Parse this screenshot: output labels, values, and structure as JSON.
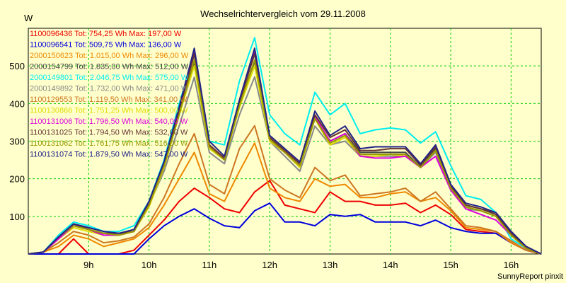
{
  "chart_data": {
    "type": "line",
    "title": "Wechselrichtervergleich vom 29.11.2008",
    "ylabel": "W",
    "footer": "SunnyReport pinxit",
    "ylim": [
      0,
      600
    ],
    "yticks": [
      100,
      200,
      300,
      400,
      500
    ],
    "xticks": [
      "9h",
      "10h",
      "11h",
      "12h",
      "13h",
      "14h",
      "15h",
      "16h"
    ],
    "grid": true,
    "x": [
      "8:00",
      "8:15",
      "8:30",
      "8:45",
      "9:00",
      "9:15",
      "9:30",
      "9:45",
      "10:00",
      "10:15",
      "10:30",
      "10:45",
      "11:00",
      "11:15",
      "11:30",
      "11:45",
      "12:00",
      "12:15",
      "12:30",
      "12:45",
      "13:00",
      "13:15",
      "13:30",
      "13:45",
      "14:00",
      "14:15",
      "14:30",
      "14:45",
      "15:00",
      "15:15",
      "15:30",
      "15:45",
      "16:00",
      "16:15",
      "16:30"
    ],
    "series": [
      {
        "name": "1100096436 Tot: 754,25 Wh Max: 197,00 W",
        "color": "#ee0000",
        "values": [
          0,
          0,
          0,
          40,
          0,
          0,
          0,
          10,
          50,
          90,
          140,
          175,
          150,
          120,
          110,
          165,
          195,
          130,
          120,
          110,
          165,
          140,
          140,
          130,
          130,
          135,
          110,
          130,
          105,
          65,
          60,
          55,
          30,
          10,
          0
        ]
      },
      {
        "name": "1100096541 Tot: 509,75 Wh Max: 136,00 W",
        "color": "#0000dd",
        "values": [
          0,
          0,
          0,
          0,
          0,
          0,
          0,
          0,
          40,
          75,
          100,
          120,
          95,
          75,
          70,
          115,
          135,
          85,
          85,
          75,
          105,
          100,
          105,
          85,
          85,
          85,
          75,
          90,
          70,
          60,
          55,
          55,
          30,
          10,
          0
        ]
      },
      {
        "name": "2000150623 Tot: 1.015,00 Wh Max: 296,00 W",
        "color": "#ee8800",
        "values": [
          0,
          5,
          20,
          50,
          40,
          20,
          30,
          40,
          70,
          130,
          200,
          270,
          160,
          140,
          220,
          295,
          175,
          150,
          140,
          200,
          180,
          185,
          150,
          150,
          160,
          165,
          140,
          150,
          115,
          70,
          65,
          60,
          30,
          10,
          0
        ]
      },
      {
        "name": "2000154799 Tot: 1.835,00 Wh Max: 512,00 W",
        "color": "#444444",
        "values": [
          0,
          5,
          40,
          80,
          70,
          60,
          55,
          60,
          140,
          240,
          380,
          510,
          290,
          250,
          400,
          512,
          310,
          270,
          230,
          360,
          300,
          320,
          270,
          270,
          270,
          270,
          230,
          280,
          180,
          130,
          120,
          110,
          60,
          20,
          0
        ]
      },
      {
        "name": "2000149801 Tot: 2.046,75 Wh Max: 575,00 W",
        "color": "#00eeee",
        "values": [
          0,
          5,
          50,
          85,
          75,
          60,
          60,
          75,
          140,
          250,
          400,
          530,
          300,
          290,
          460,
          575,
          370,
          320,
          290,
          430,
          370,
          400,
          320,
          330,
          335,
          330,
          295,
          325,
          235,
          155,
          145,
          110,
          40,
          15,
          0
        ]
      },
      {
        "name": "2000149892 Tot: 1.732,00 Wh Max: 471,00 W",
        "color": "#888888",
        "values": [
          0,
          5,
          45,
          75,
          65,
          55,
          50,
          60,
          130,
          220,
          340,
          470,
          270,
          240,
          370,
          471,
          300,
          260,
          220,
          340,
          290,
          300,
          260,
          260,
          260,
          260,
          230,
          270,
          170,
          120,
          115,
          100,
          50,
          15,
          0
        ]
      },
      {
        "name": "1100129553 Tot: 1.119,50 Wh Max: 341,00 W",
        "color": "#cc7722",
        "values": [
          0,
          5,
          30,
          60,
          50,
          30,
          35,
          45,
          80,
          150,
          240,
          320,
          185,
          160,
          280,
          341,
          200,
          170,
          150,
          230,
          195,
          210,
          155,
          160,
          165,
          175,
          140,
          165,
          120,
          75,
          70,
          60,
          35,
          10,
          0
        ]
      },
      {
        "name": "1100130866 Tot: 1.751,25 Wh Max: 500,00 W",
        "color": "#dddd00",
        "values": [
          0,
          5,
          40,
          70,
          60,
          50,
          50,
          60,
          125,
          230,
          370,
          500,
          280,
          250,
          390,
          500,
          300,
          270,
          230,
          360,
          290,
          310,
          260,
          260,
          265,
          260,
          230,
          275,
          175,
          125,
          115,
          100,
          55,
          15,
          0
        ]
      },
      {
        "name": "1100131006 Tot: 1.796,50 Wh Max: 540,00 W",
        "color": "#dd00dd",
        "values": [
          0,
          5,
          40,
          75,
          65,
          50,
          50,
          60,
          130,
          235,
          375,
          540,
          285,
          255,
          400,
          540,
          305,
          270,
          235,
          365,
          300,
          320,
          260,
          255,
          255,
          260,
          230,
          260,
          170,
          120,
          105,
          90,
          50,
          15,
          0
        ]
      },
      {
        "name": "1100131025 Tot: 1.794,50 Wh Max: 532,00 W",
        "color": "#663333",
        "values": [
          0,
          5,
          45,
          80,
          65,
          55,
          55,
          60,
          135,
          240,
          380,
          532,
          290,
          255,
          405,
          532,
          310,
          275,
          240,
          370,
          310,
          330,
          275,
          275,
          280,
          280,
          235,
          285,
          180,
          130,
          120,
          105,
          55,
          15,
          0
        ]
      },
      {
        "name": "1100131062 Tot: 1.761,75 Wh Max: 516,00 W",
        "color": "#999900",
        "values": [
          0,
          5,
          45,
          75,
          65,
          55,
          50,
          60,
          130,
          235,
          370,
          516,
          285,
          250,
          395,
          516,
          305,
          270,
          235,
          360,
          295,
          315,
          265,
          265,
          265,
          265,
          230,
          275,
          175,
          125,
          115,
          100,
          50,
          15,
          0
        ]
      },
      {
        "name": "1100131074 Tot: 1.879,50 Wh Max: 547,00 W",
        "color": "#222288",
        "values": [
          0,
          5,
          45,
          80,
          70,
          60,
          55,
          65,
          140,
          245,
          390,
          547,
          300,
          260,
          410,
          547,
          315,
          280,
          245,
          380,
          315,
          340,
          280,
          285,
          285,
          285,
          240,
          290,
          185,
          135,
          125,
          110,
          60,
          20,
          0
        ]
      }
    ]
  }
}
